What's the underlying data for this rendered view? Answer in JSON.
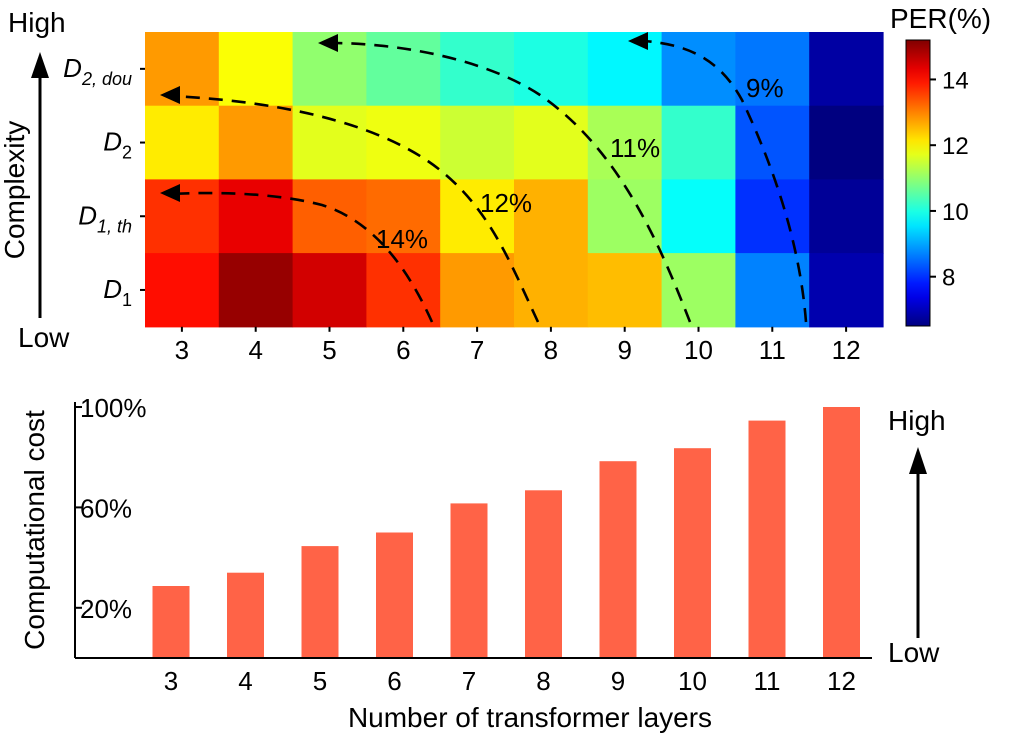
{
  "chart_data": [
    {
      "type": "heatmap",
      "colorbar_title": "PER(%)",
      "x_categories": [
        "3",
        "4",
        "5",
        "6",
        "7",
        "8",
        "9",
        "10",
        "11",
        "12"
      ],
      "y_categories": [
        {
          "base": "D",
          "sub": "2, dou"
        },
        {
          "base": "D",
          "sub": "2"
        },
        {
          "base": "D",
          "sub": "1, th"
        },
        {
          "base": "D",
          "sub": "1"
        }
      ],
      "values": [
        [
          12.8,
          11.9,
          11.0,
          10.6,
          10.2,
          10.0,
          9.7,
          8.8,
          8.6,
          6.8
        ],
        [
          12.1,
          12.8,
          11.7,
          11.8,
          11.5,
          11.7,
          11.2,
          10.2,
          8.3,
          6.4
        ],
        [
          13.7,
          14.3,
          13.3,
          13.2,
          12.1,
          12.6,
          11.1,
          9.8,
          8.0,
          6.7
        ],
        [
          14.0,
          15.0,
          14.5,
          13.7,
          12.8,
          12.6,
          12.5,
          11.1,
          8.7,
          6.9
        ]
      ],
      "color_range": [
        6.5,
        15.2
      ],
      "colorbar_ticks": [
        8,
        10,
        12,
        14
      ],
      "colormap": "jet",
      "ylabel": "Complexity",
      "y_arrow_high": "High",
      "y_arrow_low": "Low",
      "contours": [
        {
          "label": "14%"
        },
        {
          "label": "12%"
        },
        {
          "label": "11%"
        },
        {
          "label": "9%"
        }
      ]
    },
    {
      "type": "bar",
      "categories": [
        "3",
        "4",
        "5",
        "6",
        "7",
        "8",
        "9",
        "10",
        "11",
        "12"
      ],
      "values": [
        28.7,
        34.0,
        44.6,
        50.0,
        61.6,
        66.8,
        78.4,
        83.6,
        94.6,
        100.0
      ],
      "ylim": [
        0,
        100
      ],
      "yticks": [
        {
          "value": 20,
          "label": "20%"
        },
        {
          "value": 60,
          "label": "60%"
        },
        {
          "value": 100,
          "label": "100%"
        }
      ],
      "ylabel": "Computational cost",
      "xlabel": "Number of transformer layers",
      "bar_color": "#ff6347",
      "right_arrow_high": "High",
      "right_arrow_low": "Low"
    }
  ]
}
